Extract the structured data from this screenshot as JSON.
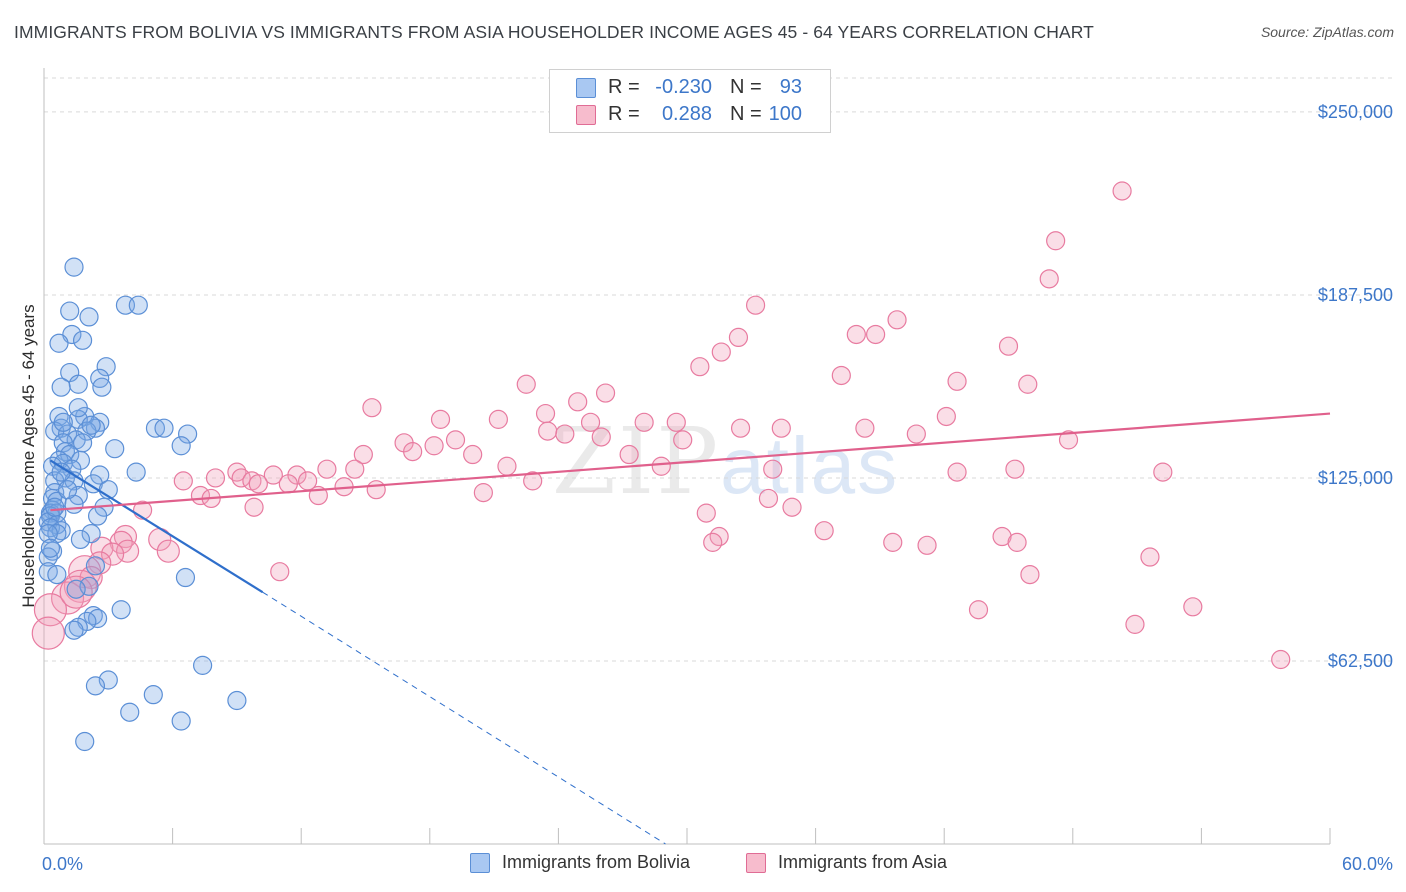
{
  "title": "IMMIGRANTS FROM BOLIVIA VS IMMIGRANTS FROM ASIA HOUSEHOLDER INCOME AGES 45 - 64 YEARS CORRELATION CHART",
  "source": "Source: ZipAtlas.com",
  "watermark": {
    "zip": "ZIP",
    "atlas": "atlas"
  },
  "legend": {
    "rows": [
      {
        "r_label": "R =",
        "r_value": "-0.230",
        "n_label": "N =",
        "n_value": "93",
        "color": "#a9c8f2",
        "border": "#5b8fd6"
      },
      {
        "r_label": "R =",
        "r_value": "0.288",
        "n_label": "N =",
        "n_value": "100",
        "color": "#f7bccd",
        "border": "#e06c95"
      }
    ]
  },
  "bottom_legend": {
    "bolivia": "Immigrants from Bolivia",
    "asia": "Immigrants from Asia"
  },
  "colors": {
    "bolivia_fill": "rgba(122,168,230,0.35)",
    "bolivia_stroke": "#5b8fd6",
    "bolivia_line": "#2f6fcb",
    "asia_fill": "rgba(242,160,186,0.35)",
    "asia_stroke": "#e87ba0",
    "asia_line": "#e0608c",
    "tick": "#3d77c9",
    "grid": "#d9d9d9"
  },
  "chart_data": {
    "type": "scatter",
    "title": "IMMIGRANTS FROM BOLIVIA VS IMMIGRANTS FROM ASIA HOUSEHOLDER INCOME AGES 45 - 64 YEARS CORRELATION CHART",
    "xlabel": "",
    "ylabel": "Householder Income Ages 45 - 64 years",
    "xlim": [
      0,
      60
    ],
    "ylim": [
      0,
      265000
    ],
    "x_tick_labels": [
      {
        "value": 0,
        "label": "0.0%"
      },
      {
        "value": 60,
        "label": "60.0%"
      }
    ],
    "y_ticks": [
      {
        "value": 62500,
        "label": "$62,500"
      },
      {
        "value": 125000,
        "label": "$125,000"
      },
      {
        "value": 187500,
        "label": "$187,500"
      },
      {
        "value": 250000,
        "label": "$250,000"
      }
    ],
    "series": [
      {
        "name": "Immigrants from Bolivia",
        "R": -0.23,
        "N": 93,
        "trend": {
          "x0": 0.3,
          "y0": 131000,
          "x1": 10.2,
          "y1": 86000,
          "dash_to_x": 29,
          "dash_to_y": 0
        },
        "points": [
          [
            1.4,
            197000
          ],
          [
            3.8,
            184000
          ],
          [
            4.4,
            184000
          ],
          [
            1.2,
            182000
          ],
          [
            2.1,
            180000
          ],
          [
            1.3,
            174000
          ],
          [
            1.8,
            172000
          ],
          [
            0.7,
            171000
          ],
          [
            2.9,
            163000
          ],
          [
            1.2,
            161000
          ],
          [
            2.6,
            159000
          ],
          [
            1.6,
            157000
          ],
          [
            0.8,
            156000
          ],
          [
            2.7,
            156000
          ],
          [
            0.7,
            146000
          ],
          [
            1.9,
            146000
          ],
          [
            1.6,
            145000
          ],
          [
            2.6,
            144000
          ],
          [
            0.8,
            142000
          ],
          [
            2.4,
            142000
          ],
          [
            5.2,
            142000
          ],
          [
            5.6,
            142000
          ],
          [
            0.5,
            141000
          ],
          [
            1.1,
            140000
          ],
          [
            2.0,
            141000
          ],
          [
            6.7,
            140000
          ],
          [
            1.5,
            138000
          ],
          [
            0.9,
            137000
          ],
          [
            6.4,
            136000
          ],
          [
            3.3,
            135000
          ],
          [
            1.0,
            134000
          ],
          [
            1.2,
            133000
          ],
          [
            0.7,
            131000
          ],
          [
            1.7,
            131000
          ],
          [
            0.9,
            130000
          ],
          [
            0.4,
            129000
          ],
          [
            1.3,
            128000
          ],
          [
            4.3,
            127000
          ],
          [
            2.6,
            126000
          ],
          [
            1.0,
            125000
          ],
          [
            1.4,
            124000
          ],
          [
            0.5,
            124000
          ],
          [
            2.3,
            123000
          ],
          [
            3.0,
            121000
          ],
          [
            0.5,
            120000
          ],
          [
            1.6,
            119000
          ],
          [
            0.4,
            118000
          ],
          [
            0.6,
            117000
          ],
          [
            1.4,
            116000
          ],
          [
            2.8,
            115000
          ],
          [
            0.4,
            114000
          ],
          [
            0.3,
            113000
          ],
          [
            0.6,
            113000
          ],
          [
            0.3,
            112000
          ],
          [
            2.5,
            112000
          ],
          [
            0.2,
            110000
          ],
          [
            0.6,
            109000
          ],
          [
            0.3,
            108000
          ],
          [
            0.8,
            107000
          ],
          [
            0.6,
            106000
          ],
          [
            0.2,
            106000
          ],
          [
            2.2,
            106000
          ],
          [
            1.7,
            104000
          ],
          [
            0.4,
            100000
          ],
          [
            0.2,
            98000
          ],
          [
            2.4,
            95000
          ],
          [
            0.2,
            93000
          ],
          [
            0.6,
            92000
          ],
          [
            6.6,
            91000
          ],
          [
            2.1,
            88000
          ],
          [
            1.5,
            87000
          ],
          [
            3.6,
            80000
          ],
          [
            2.3,
            78000
          ],
          [
            2.5,
            77000
          ],
          [
            2.0,
            76000
          ],
          [
            1.6,
            74000
          ],
          [
            1.4,
            73000
          ],
          [
            7.4,
            61000
          ],
          [
            3.0,
            56000
          ],
          [
            2.4,
            54000
          ],
          [
            5.1,
            51000
          ],
          [
            9.0,
            49000
          ],
          [
            4.0,
            45000
          ],
          [
            6.4,
            42000
          ],
          [
            1.9,
            35000
          ],
          [
            0.3,
            101000
          ],
          [
            0.5,
            115000
          ],
          [
            1.1,
            121000
          ],
          [
            0.8,
            127000
          ],
          [
            1.8,
            137000
          ],
          [
            2.2,
            143000
          ],
          [
            0.9,
            144000
          ],
          [
            1.6,
            149000
          ]
        ]
      },
      {
        "name": "Immigrants from Asia",
        "R": 0.288,
        "N": 100,
        "trend": {
          "x0": 0.3,
          "y0": 114000,
          "x1": 60,
          "y1": 147000
        },
        "points": [
          [
            50.3,
            223000
          ],
          [
            47.2,
            206000
          ],
          [
            46.9,
            193000
          ],
          [
            33.2,
            184000
          ],
          [
            39.8,
            179000
          ],
          [
            37.9,
            174000
          ],
          [
            38.8,
            174000
          ],
          [
            45.0,
            170000
          ],
          [
            32.4,
            173000
          ],
          [
            31.6,
            168000
          ],
          [
            30.6,
            163000
          ],
          [
            37.2,
            160000
          ],
          [
            42.6,
            158000
          ],
          [
            45.9,
            157000
          ],
          [
            22.5,
            157000
          ],
          [
            26.2,
            154000
          ],
          [
            24.9,
            151000
          ],
          [
            15.3,
            149000
          ],
          [
            23.4,
            147000
          ],
          [
            42.1,
            146000
          ],
          [
            18.5,
            145000
          ],
          [
            21.2,
            145000
          ],
          [
            25.5,
            144000
          ],
          [
            28.0,
            144000
          ],
          [
            29.5,
            144000
          ],
          [
            32.5,
            142000
          ],
          [
            34.4,
            142000
          ],
          [
            38.3,
            142000
          ],
          [
            23.5,
            141000
          ],
          [
            24.3,
            140000
          ],
          [
            26.0,
            139000
          ],
          [
            29.8,
            138000
          ],
          [
            40.7,
            140000
          ],
          [
            47.8,
            138000
          ],
          [
            19.2,
            138000
          ],
          [
            16.8,
            137000
          ],
          [
            18.2,
            136000
          ],
          [
            14.9,
            133000
          ],
          [
            17.2,
            134000
          ],
          [
            20.0,
            133000
          ],
          [
            27.3,
            133000
          ],
          [
            21.6,
            129000
          ],
          [
            13.2,
            128000
          ],
          [
            14.5,
            128000
          ],
          [
            28.8,
            129000
          ],
          [
            34.0,
            128000
          ],
          [
            42.6,
            127000
          ],
          [
            45.3,
            128000
          ],
          [
            52.2,
            127000
          ],
          [
            9.0,
            127000
          ],
          [
            10.7,
            126000
          ],
          [
            11.8,
            126000
          ],
          [
            12.3,
            124000
          ],
          [
            9.2,
            125000
          ],
          [
            9.7,
            124000
          ],
          [
            8.0,
            125000
          ],
          [
            10.0,
            123000
          ],
          [
            11.4,
            123000
          ],
          [
            14.0,
            122000
          ],
          [
            15.5,
            121000
          ],
          [
            20.5,
            120000
          ],
          [
            22.8,
            124000
          ],
          [
            6.5,
            124000
          ],
          [
            7.3,
            119000
          ],
          [
            7.8,
            118000
          ],
          [
            12.8,
            119000
          ],
          [
            33.8,
            118000
          ],
          [
            4.6,
            114000
          ],
          [
            9.8,
            115000
          ],
          [
            34.9,
            115000
          ],
          [
            30.9,
            113000
          ],
          [
            36.4,
            107000
          ],
          [
            31.5,
            105000
          ],
          [
            44.7,
            105000
          ],
          [
            45.4,
            103000
          ],
          [
            39.6,
            103000
          ],
          [
            41.2,
            102000
          ],
          [
            31.2,
            103000
          ],
          [
            3.8,
            105000
          ],
          [
            5.4,
            104000
          ],
          [
            3.6,
            103000
          ],
          [
            2.7,
            101000
          ],
          [
            3.9,
            100000
          ],
          [
            5.8,
            100000
          ],
          [
            3.2,
            99000
          ],
          [
            51.6,
            98000
          ],
          [
            2.6,
            96000
          ],
          [
            1.9,
            93000
          ],
          [
            11.0,
            93000
          ],
          [
            46.0,
            92000
          ],
          [
            2.2,
            91000
          ],
          [
            1.7,
            88000
          ],
          [
            1.1,
            84000
          ],
          [
            0.3,
            80000
          ],
          [
            43.6,
            80000
          ],
          [
            53.6,
            81000
          ],
          [
            57.7,
            63000
          ],
          [
            0.2,
            72000
          ],
          [
            50.9,
            75000
          ],
          [
            1.5,
            86000
          ]
        ]
      }
    ]
  }
}
